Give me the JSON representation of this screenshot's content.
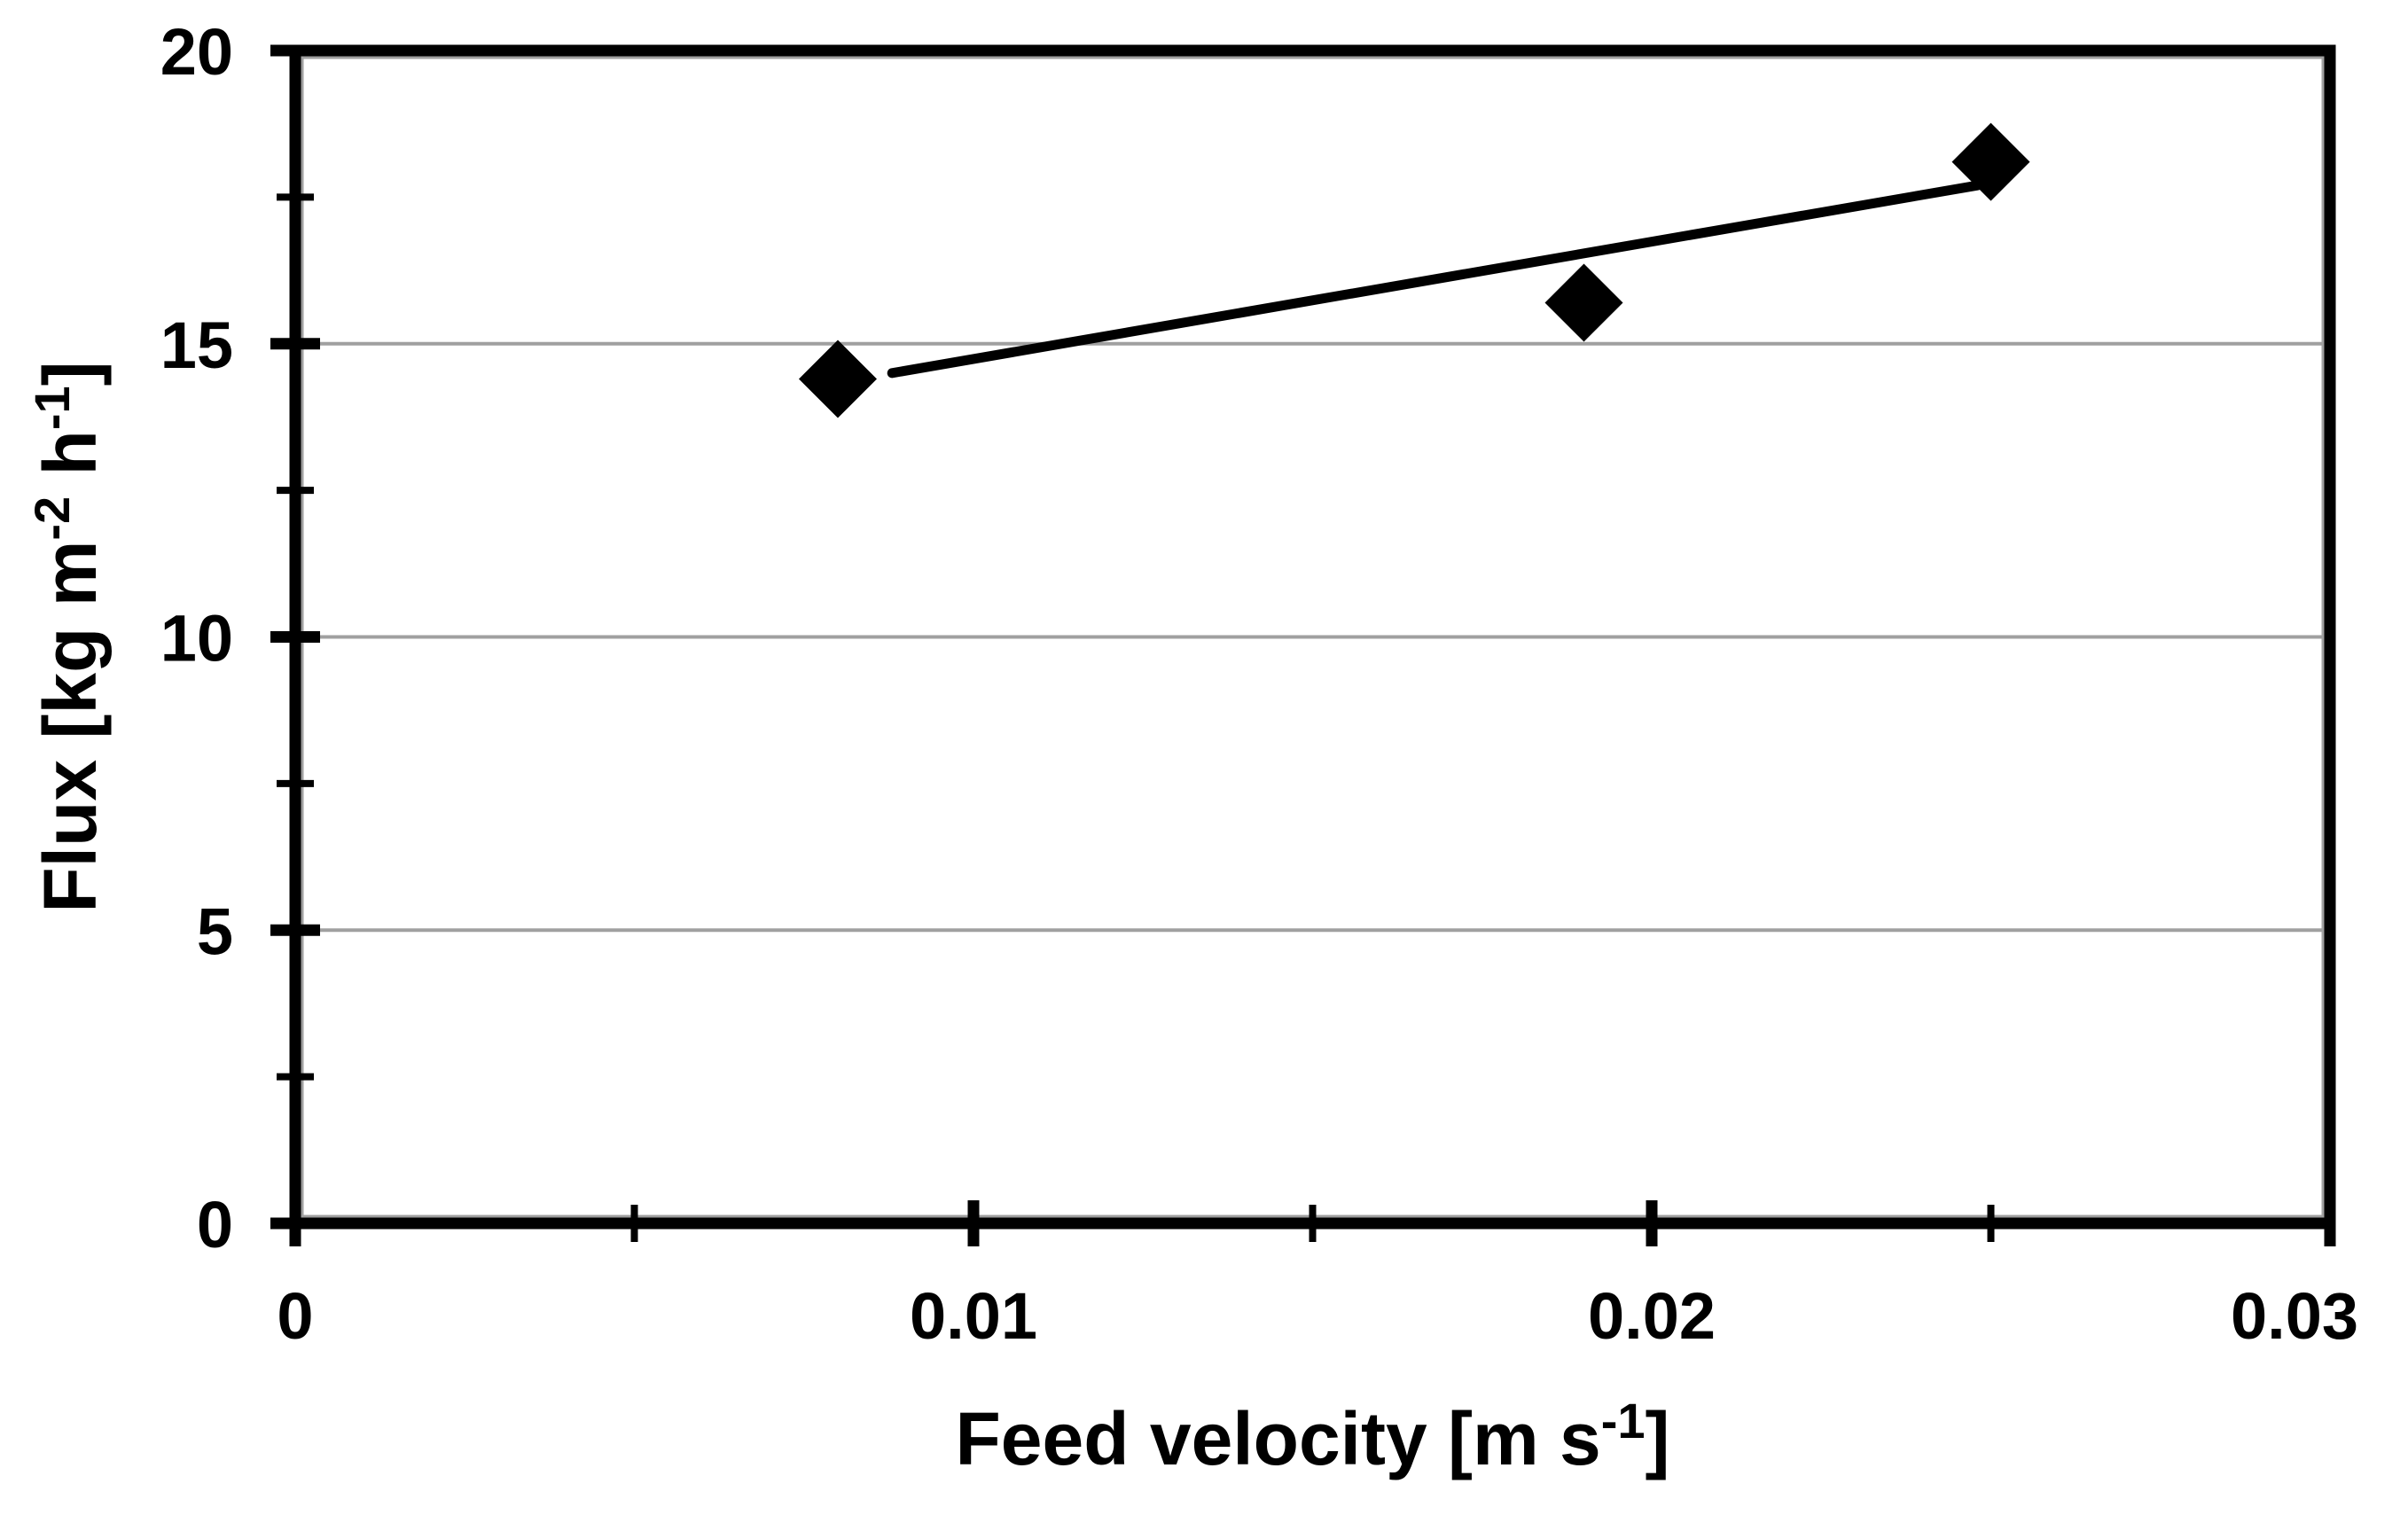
{
  "chart_data": {
    "type": "scatter",
    "title": "",
    "xlabel": "Feed velocity [m s⁻¹]",
    "ylabel": "Flux [kg m⁻² h⁻¹]",
    "xlabel_parts": [
      {
        "t": "Feed velocity [m s"
      },
      {
        "t": "-1",
        "sup": true
      },
      {
        "t": "]"
      }
    ],
    "ylabel_parts": [
      {
        "t": "Flux [kg m"
      },
      {
        "t": "-2",
        "sup": true
      },
      {
        "t": " h"
      },
      {
        "t": "-1",
        "sup": true
      },
      {
        "t": "]"
      }
    ],
    "xlim": [
      0,
      0.03
    ],
    "ylim": [
      0,
      20
    ],
    "x_major_ticks": [
      0,
      0.01,
      0.02,
      0.03
    ],
    "x_minor_ticks": [
      0.005,
      0.015,
      0.025
    ],
    "x_tick_labels": [
      "0",
      "0.01",
      "0.02",
      "0.03"
    ],
    "y_major_ticks": [
      0,
      5,
      10,
      15,
      20
    ],
    "y_minor_ticks": [
      2.5,
      7.5,
      12.5,
      17.5
    ],
    "y_tick_labels": [
      "0",
      "5",
      "10",
      "15",
      "20"
    ],
    "gridlines_y": [
      5,
      10,
      15
    ],
    "grid": "horizontal-major-only",
    "legend": "none",
    "series": [
      {
        "name": "flux-vs-feed-velocity",
        "marker": "diamond",
        "color": "#000000",
        "points": [
          {
            "x": 0.008,
            "y": 14.4
          },
          {
            "x": 0.019,
            "y": 15.7
          },
          {
            "x": 0.025,
            "y": 18.1
          }
        ]
      }
    ],
    "trendline": {
      "type": "linear",
      "x1": 0.0088,
      "y1": 14.5,
      "x2": 0.0248,
      "y2": 17.7,
      "color": "#000000"
    }
  },
  "style": {
    "axis_color": "#000000",
    "gridline_color": "#a0a0a0",
    "plot_border_inner_color": "#a0a0a0",
    "background": "#ffffff",
    "marker_color": "#000000",
    "trendline_color": "#000000"
  }
}
